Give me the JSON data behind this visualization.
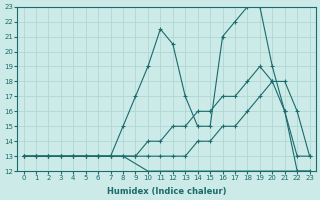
{
  "title": "",
  "xlabel": "Humidex (Indice chaleur)",
  "ylabel": "",
  "bg_color": "#cceae8",
  "grid_color": "#b0d8d5",
  "line_color": "#1a6b6b",
  "xlim": [
    -0.5,
    23.5
  ],
  "ylim": [
    12,
    23
  ],
  "xticks": [
    0,
    1,
    2,
    3,
    4,
    5,
    6,
    7,
    8,
    9,
    10,
    11,
    12,
    13,
    14,
    15,
    16,
    17,
    18,
    19,
    20,
    21,
    22,
    23
  ],
  "yticks": [
    12,
    13,
    14,
    15,
    16,
    17,
    18,
    19,
    20,
    21,
    22,
    23
  ],
  "series": [
    {
      "x": [
        0,
        1,
        2,
        3,
        4,
        5,
        6,
        7,
        8,
        9,
        10,
        11,
        12,
        13,
        14,
        15,
        16,
        17,
        18,
        19,
        20,
        21,
        22,
        23
      ],
      "y": [
        13,
        13,
        13,
        13,
        13,
        13,
        13,
        13,
        13,
        12.5,
        12,
        12,
        12,
        12,
        12,
        12,
        12,
        12,
        12,
        12,
        12,
        12,
        12,
        12
      ],
      "marker": false
    },
    {
      "x": [
        0,
        1,
        2,
        3,
        4,
        5,
        6,
        7,
        8,
        9,
        10,
        11,
        12,
        13,
        14,
        15,
        16,
        17,
        18,
        19,
        20,
        21,
        22,
        23
      ],
      "y": [
        13,
        13,
        13,
        13,
        13,
        13,
        13,
        13,
        13,
        13,
        13,
        13,
        13,
        13,
        14,
        14,
        15,
        15,
        16,
        17,
        18,
        18,
        16,
        13
      ],
      "marker": true
    },
    {
      "x": [
        0,
        1,
        2,
        3,
        4,
        5,
        6,
        7,
        8,
        9,
        10,
        11,
        12,
        13,
        14,
        15,
        16,
        17,
        18,
        19,
        20,
        21,
        22,
        23
      ],
      "y": [
        13,
        13,
        13,
        13,
        13,
        13,
        13,
        13,
        13,
        13,
        14,
        14,
        15,
        15,
        16,
        16,
        17,
        17,
        18,
        19,
        18,
        16,
        13,
        13
      ],
      "marker": true
    },
    {
      "x": [
        0,
        1,
        2,
        3,
        4,
        5,
        6,
        7,
        8,
        9,
        10,
        11,
        12,
        13,
        14,
        15,
        16,
        17,
        18,
        19,
        20,
        21,
        22,
        23
      ],
      "y": [
        13,
        13,
        13,
        13,
        13,
        13,
        13,
        13,
        15,
        17,
        19,
        21.5,
        20.5,
        17,
        15,
        15,
        21,
        22,
        23,
        23,
        19,
        16,
        12,
        12
      ],
      "marker": true
    }
  ]
}
